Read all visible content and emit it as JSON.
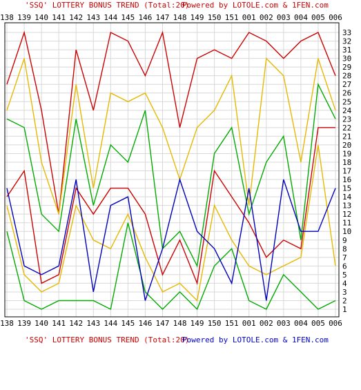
{
  "chart_data": {
    "type": "line",
    "title_top": {
      "left": "'SSQ' LOTTERY BONUS TREND (Total:20)",
      "right": "Powered by LOTOLE.com & 1FEN.com"
    },
    "title_bottom": {
      "left": "'SSQ' LOTTERY BONUS TREND (Total:20)",
      "right": "Powered by LOTOLE.com & 1FEN.com"
    },
    "categories": [
      "138",
      "139",
      "140",
      "141",
      "142",
      "143",
      "144",
      "145",
      "146",
      "147",
      "148",
      "149",
      "150",
      "151",
      "001",
      "002",
      "003",
      "004",
      "005",
      "006"
    ],
    "ylim": [
      1,
      33
    ],
    "yticks": [
      1,
      2,
      3,
      4,
      5,
      6,
      7,
      8,
      9,
      10,
      11,
      12,
      13,
      14,
      15,
      16,
      17,
      18,
      19,
      20,
      21,
      22,
      23,
      24,
      25,
      26,
      27,
      28,
      29,
      30,
      31,
      32,
      33
    ],
    "grid": true,
    "colors": {
      "red": "#cc0000",
      "yellow": "#e6b800",
      "green": "#00aa00",
      "blue": "#0000bb",
      "title": "#cc0000",
      "title_link": "#0000cc"
    },
    "series": [
      {
        "color": "#cc0000",
        "values": [
          27,
          33,
          24,
          12,
          31,
          24,
          33,
          32,
          28,
          33,
          22,
          30,
          31,
          30,
          33,
          32,
          30,
          32,
          33,
          28
        ]
      },
      {
        "color": "#e6b800",
        "values": [
          24,
          30,
          18,
          12,
          27,
          15,
          26,
          25,
          26,
          22,
          16,
          22,
          24,
          28,
          13,
          30,
          28,
          18,
          30,
          24
        ]
      },
      {
        "color": "#00aa00",
        "values": [
          23,
          22,
          12,
          10,
          23,
          13,
          20,
          18,
          24,
          8,
          10,
          6,
          19,
          22,
          12,
          18,
          21,
          9,
          27,
          23
        ]
      },
      {
        "color": "#cc0000",
        "values": [
          14,
          17,
          4,
          5,
          15,
          12,
          15,
          15,
          12,
          5,
          9,
          4,
          17,
          14,
          11,
          7,
          9,
          8,
          22,
          22
        ]
      },
      {
        "color": "#e6b800",
        "values": [
          13,
          5,
          3,
          4,
          13,
          9,
          8,
          12,
          7,
          3,
          4,
          2,
          13,
          9,
          6,
          5,
          6,
          7,
          20,
          6
        ]
      },
      {
        "color": "#00aa00",
        "values": [
          10,
          2,
          1,
          2,
          2,
          2,
          1,
          11,
          3,
          1,
          3,
          1,
          6,
          8,
          2,
          1,
          5,
          3,
          1,
          2
        ]
      },
      {
        "color": "#0000bb",
        "values": [
          15,
          6,
          5,
          6,
          16,
          3,
          13,
          14,
          2,
          8,
          16,
          10,
          8,
          4,
          15,
          2,
          16,
          10,
          10,
          15
        ]
      }
    ]
  }
}
